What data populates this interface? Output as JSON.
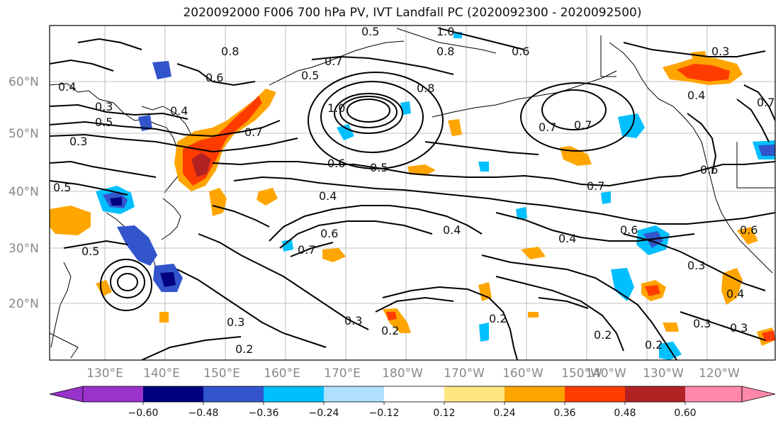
{
  "title": "2020092000 F006 700 hPa PV, IVT Landfall PC (2020092300 - 2020092500)",
  "lat_labels": [
    "60°N",
    "50°N",
    "40°N",
    "30°N",
    "20°N"
  ],
  "lon_labels": [
    "130°E",
    "140°E",
    "150°E",
    "160°E",
    "170°E",
    "180°W",
    "170°W",
    "160°W",
    "150°W",
    "140°W",
    "130°W",
    "120°W"
  ],
  "colorbar": {
    "ticks": [
      "−0.60",
      "−0.48",
      "−0.36",
      "−0.24",
      "−0.12",
      "0.12",
      "0.24",
      "0.36",
      "0.48",
      "0.60"
    ],
    "colors": [
      "#9933cc",
      "#000080",
      "#3355cc",
      "#00bfff",
      "#b0e0ff",
      "#ffffff",
      "#ffe680",
      "#ffa500",
      "#ff3c00",
      "#b22222",
      "#ff88aa"
    ]
  },
  "contour_labels": [
    "0.5",
    "0.7",
    "0.5",
    "0.8",
    "0.6",
    "1.0",
    "0.8",
    "0.6",
    "0.4",
    "0.3",
    "0.5",
    "0.3",
    "0.4",
    "0.7",
    "1.0",
    "0.8",
    "0.7",
    "0.7",
    "0.6",
    "0.5",
    "0.4",
    "0.7",
    "0.6",
    "0.7",
    "0.6",
    "0.4",
    "0.6",
    "0.4",
    "0.5",
    "0.5",
    "0.3",
    "0.3",
    "0.2",
    "0.2",
    "0.3",
    "0.2",
    "0.2",
    "0.3",
    "0.3",
    "0.4",
    "0.3",
    "0.2",
    "0.6",
    "0.4",
    "0.7"
  ]
}
